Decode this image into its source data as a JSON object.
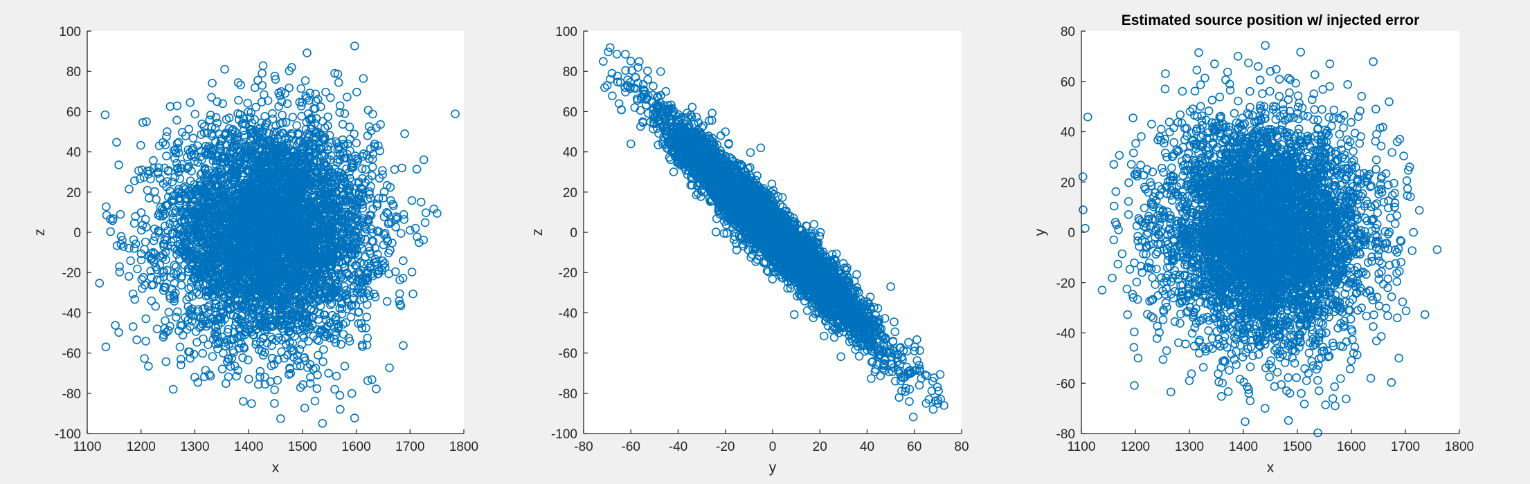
{
  "figure": {
    "background": "#f0f0f0",
    "marker_color": "#0072bd",
    "marker": "o"
  },
  "chart_data": [
    {
      "type": "scatter",
      "title": "",
      "xlabel": "x",
      "ylabel": "z",
      "xlim": [
        1100,
        1800
      ],
      "ylim": [
        -100,
        100
      ],
      "xticks": [
        1100,
        1200,
        1300,
        1400,
        1500,
        1600,
        1700,
        1800
      ],
      "yticks": [
        -100,
        -80,
        -60,
        -40,
        -20,
        0,
        20,
        40,
        60,
        80,
        100
      ],
      "grid": false,
      "distribution": {
        "x_mean": 1440,
        "x_sd": 95,
        "y_mean": 0,
        "y_sd": 27,
        "correlation": 0,
        "n_points": 5000
      },
      "points": [
        [
          1163,
          -2
        ],
        [
          1165,
          -4
        ],
        [
          1160,
          -17
        ],
        [
          1167,
          -7
        ],
        [
          1260,
          -78
        ],
        [
          1210,
          55
        ],
        [
          1480,
          82
        ],
        [
          1425,
          79
        ],
        [
          1560,
          79
        ],
        [
          1450,
          76
        ],
        [
          1570,
          -88
        ],
        [
          1448,
          -85
        ],
        [
          1390,
          -84
        ],
        [
          1560,
          -78
        ],
        [
          1690,
          49
        ],
        [
          1685,
          32
        ],
        [
          1710,
          2
        ],
        [
          1700,
          1
        ],
        [
          1680,
          -34
        ],
        [
          1620,
          -56
        ],
        [
          1300,
          -72
        ],
        [
          1430,
          -72
        ],
        [
          1520,
          -68
        ],
        [
          1230,
          -48
        ]
      ]
    },
    {
      "type": "scatter",
      "title": "",
      "xlabel": "y",
      "ylabel": "z",
      "xlim": [
        -80,
        80
      ],
      "ylim": [
        -100,
        100
      ],
      "xticks": [
        -80,
        -60,
        -40,
        -20,
        0,
        20,
        40,
        60,
        80
      ],
      "yticks": [
        -100,
        -80,
        -60,
        -40,
        -20,
        0,
        20,
        40,
        60,
        80,
        100
      ],
      "grid": false,
      "distribution": {
        "x_mean": 0,
        "x_sd": 22,
        "y_mean": 0,
        "y_sd": 27,
        "correlation": -0.96,
        "n_points": 5000
      },
      "points": [
        [
          -70,
          73
        ],
        [
          -68,
          79
        ],
        [
          -57,
          82
        ],
        [
          -58,
          77
        ],
        [
          -65,
          64
        ],
        [
          -64,
          61
        ],
        [
          -60,
          44
        ],
        [
          -55,
          55
        ],
        [
          65,
          -85
        ],
        [
          70,
          -85
        ],
        [
          68,
          -88
        ],
        [
          60,
          -59
        ],
        [
          58,
          -78
        ],
        [
          56,
          -72
        ],
        [
          50,
          -60
        ],
        [
          45,
          -54
        ],
        [
          -5,
          42
        ],
        [
          50,
          -27
        ],
        [
          -20,
          50
        ],
        [
          -40,
          50
        ],
        [
          30,
          -44
        ],
        [
          62,
          -66
        ]
      ]
    },
    {
      "type": "scatter",
      "title": "Estimated source position w/ injected error",
      "xlabel": "x",
      "ylabel": "y",
      "xlim": [
        1100,
        1800
      ],
      "ylim": [
        -80,
        80
      ],
      "xticks": [
        1100,
        1200,
        1300,
        1400,
        1500,
        1600,
        1700,
        1800
      ],
      "yticks": [
        -80,
        -60,
        -40,
        -20,
        0,
        20,
        40,
        60,
        80
      ],
      "grid": false,
      "distribution": {
        "x_mean": 1440,
        "x_sd": 95,
        "y_mean": 0,
        "y_sd": 22,
        "correlation": 0,
        "n_points": 5000
      },
      "points": [
        [
          1390,
          70
        ],
        [
          1560,
          67
        ],
        [
          1450,
          64
        ],
        [
          1255,
          57
        ],
        [
          1560,
          58
        ],
        [
          1160,
          27
        ],
        [
          1163,
          4
        ],
        [
          1165,
          3
        ],
        [
          1160,
          -3
        ],
        [
          1205,
          -50
        ],
        [
          1440,
          -70
        ],
        [
          1410,
          -64
        ],
        [
          1570,
          -69
        ],
        [
          1540,
          -63
        ],
        [
          1715,
          0
        ],
        [
          1708,
          26
        ],
        [
          1685,
          36
        ],
        [
          1685,
          -34
        ],
        [
          1688,
          -50
        ],
        [
          1680,
          10
        ],
        [
          1230,
          43
        ],
        [
          1480,
          -63
        ],
        [
          1300,
          -59
        ],
        [
          1600,
          -51
        ]
      ]
    }
  ]
}
